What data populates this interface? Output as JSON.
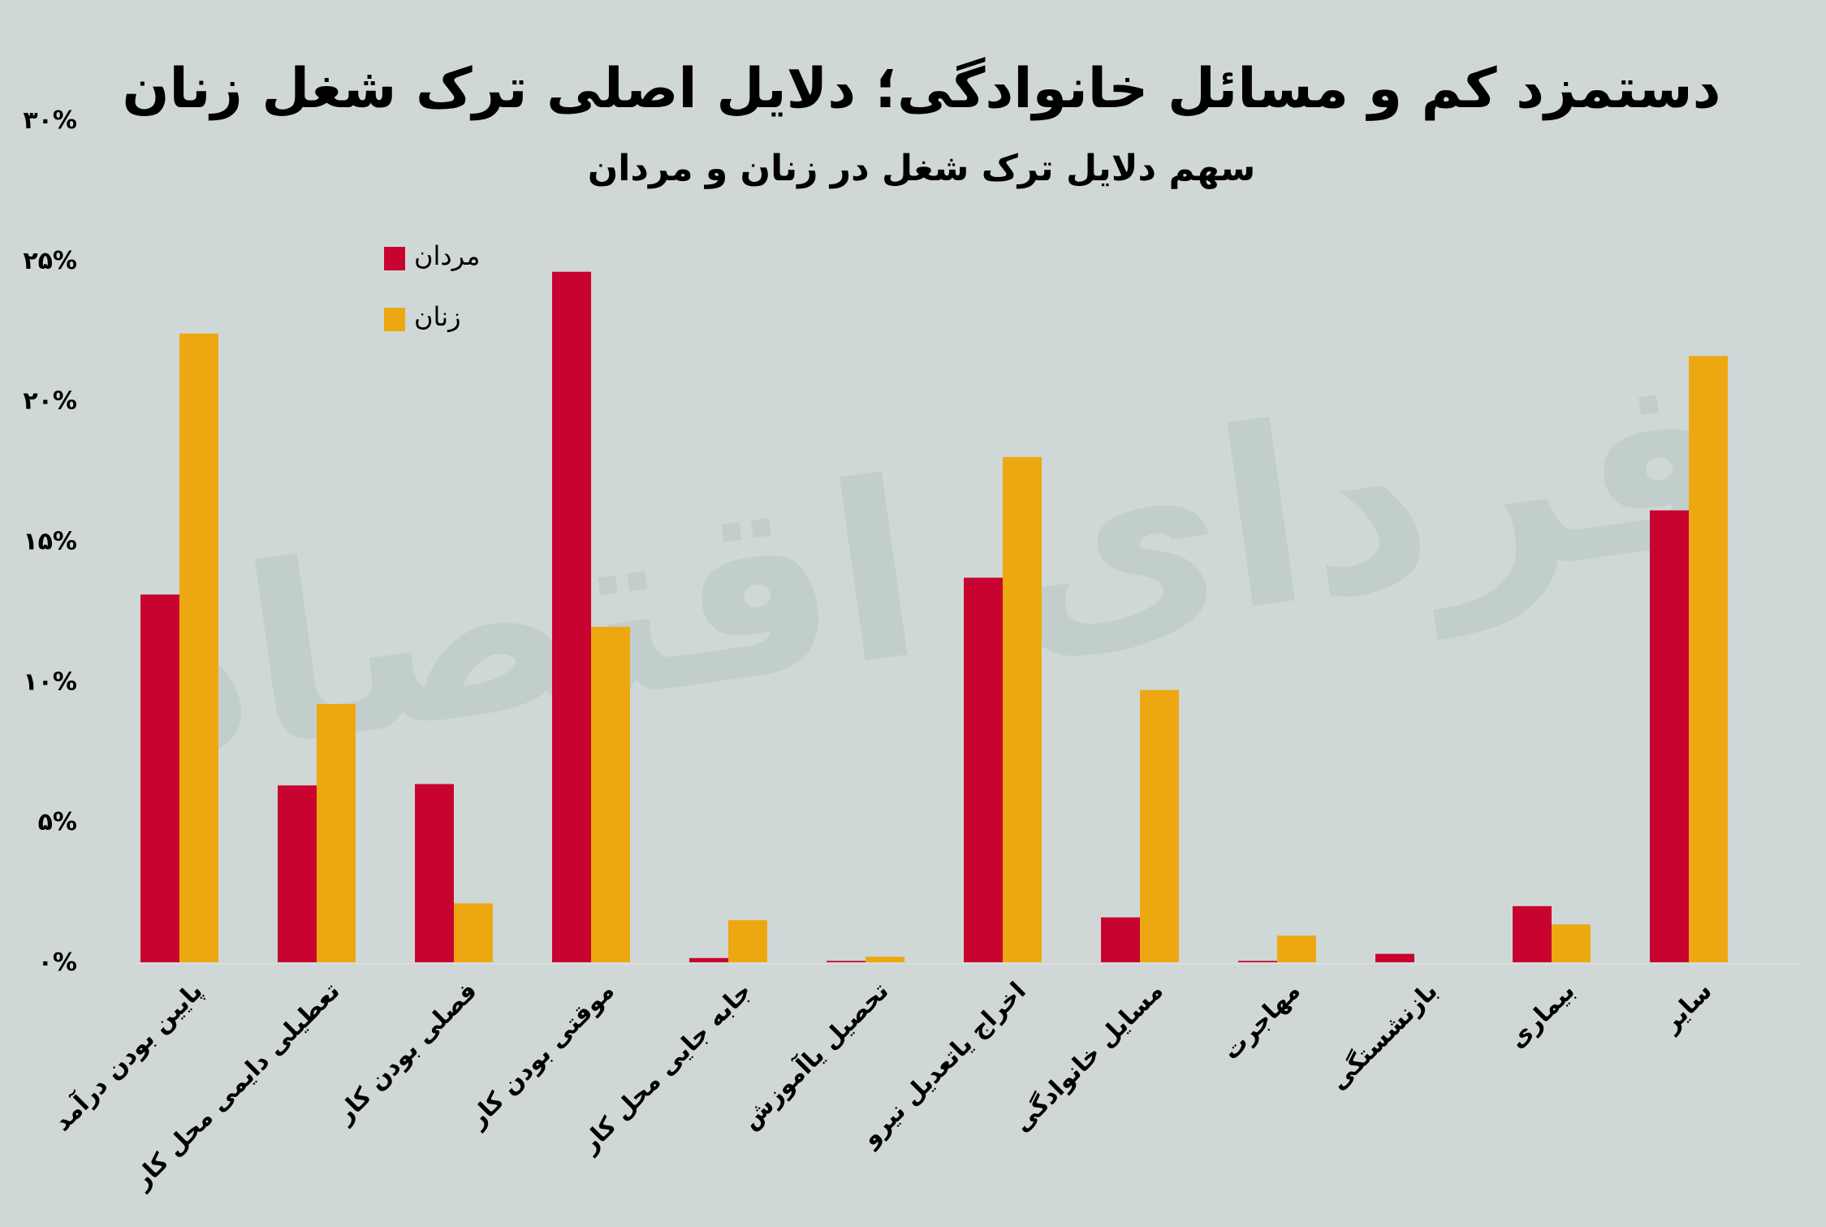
{
  "chart_data": {
    "type": "bar",
    "title": "دستمزد کم و مسائل خانوادگی؛ دلایل اصلی ترک شغل زنان",
    "subtitle": "سهم دلایل ترک شغل در زنان و مردان",
    "xlabel": "",
    "ylabel": "",
    "ylim": [
      0,
      30
    ],
    "yticks": [
      0,
      5,
      10,
      15,
      20,
      25,
      30
    ],
    "ytick_labels": [
      "۰%",
      "۵%",
      "۱۰%",
      "۱۵%",
      "۲۰%",
      "۲۵%",
      "۳۰%"
    ],
    "grid": false,
    "legend_position": "top-left",
    "categories": [
      "پایین بودن درآمد",
      "تعطیلی دایمی محل کار",
      "فصلی بودن کار",
      "موقتی بودن کار",
      "جابه جایی محل کار",
      "تحصیل یاآموزش",
      "اخراج یاتعدیل نیرو",
      "مسایل خانوادگی",
      "مهاجرت",
      "بازنشستگی",
      "بیماری",
      "سایر"
    ],
    "series": [
      {
        "name": "مردان",
        "color": "#c8032f",
        "values": [
          13.1,
          6.3,
          6.35,
          24.6,
          0.15,
          0.05,
          13.7,
          1.6,
          0.05,
          0.3,
          2.0,
          16.1
        ]
      },
      {
        "name": "زنان",
        "color": "#eda811",
        "values": [
          22.4,
          9.2,
          2.1,
          11.95,
          1.5,
          0.2,
          18.0,
          9.7,
          0.95,
          0,
          1.35,
          21.6
        ]
      }
    ]
  },
  "watermark": "فردای اقتصاد"
}
